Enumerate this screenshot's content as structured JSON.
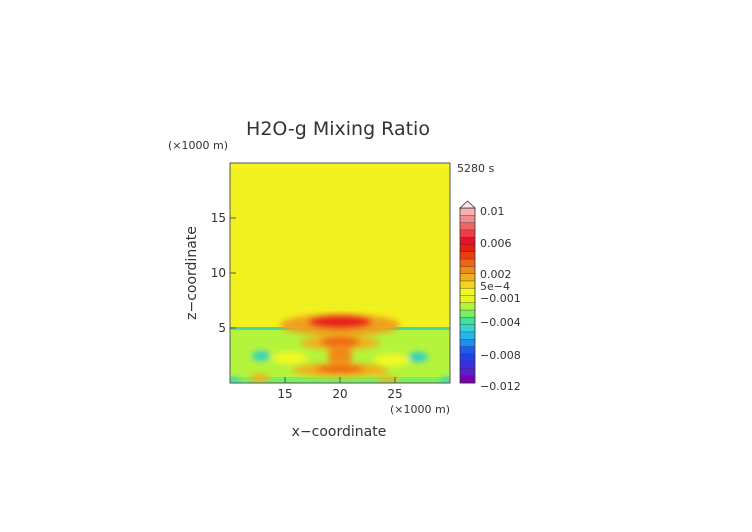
{
  "chart_data": {
    "type": "heatmap",
    "title": "H2O-g Mixing Ratio",
    "xlabel": "x−coordinate",
    "ylabel": "z−coordinate",
    "x_unit": "(×1000 m)",
    "y_unit": "(×1000 m)",
    "time_label": "5280 s",
    "xlim": [
      10,
      30
    ],
    "ylim": [
      0,
      20
    ],
    "x_ticks": [
      "15",
      "20",
      "25"
    ],
    "x_tick_values": [
      15,
      20,
      25
    ],
    "y_ticks": [
      "5",
      "10",
      "15"
    ],
    "y_tick_values": [
      5,
      10,
      15
    ],
    "background_value": 0.0,
    "features": [
      {
        "kind": "anomaly",
        "x": 20.0,
        "z": 5.6,
        "value": 0.005
      },
      {
        "kind": "anomaly",
        "x": 20.0,
        "z": 3.9,
        "value": 0.002
      },
      {
        "kind": "anomaly",
        "x": 20.0,
        "z": 1.3,
        "value": 0.002
      },
      {
        "kind": "anomaly",
        "x": 15.5,
        "z": 1.9,
        "value": 0.001
      },
      {
        "kind": "anomaly",
        "x": 13.0,
        "z": 2.5,
        "value": -0.002
      },
      {
        "kind": "anomaly",
        "x": 26.5,
        "z": 2.6,
        "value": -0.002
      },
      {
        "kind": "layer",
        "z_min": 0,
        "z_max": 5,
        "value": -0.0008
      },
      {
        "kind": "layer",
        "z_min": 4.9,
        "z_max": 5.1,
        "value": -0.002
      }
    ],
    "colorbar": {
      "labels": [
        "0.01",
        "0.006",
        "0.002",
        "5e−4",
        "−0.001",
        "−0.004",
        "−0.008",
        "−0.012"
      ],
      "label_values": [
        0.01,
        0.006,
        0.002,
        0.0005,
        -0.001,
        -0.004,
        -0.008,
        -0.012
      ],
      "colors": [
        "#7b00b0",
        "#5a1ed0",
        "#3c2fe0",
        "#2a3ee8",
        "#1e5cf0",
        "#1e8cf0",
        "#22b8ee",
        "#30d4d0",
        "#40e0a0",
        "#7af060",
        "#b4f43c",
        "#e2f81e",
        "#f4f820",
        "#f2d61e",
        "#f0b01a",
        "#f08a18",
        "#f06414",
        "#ea4010",
        "#e81e10",
        "#e8102a",
        "#ee3c48",
        "#f06466",
        "#f48a8c",
        "#f8b0b0"
      ],
      "extend_top": true
    }
  }
}
